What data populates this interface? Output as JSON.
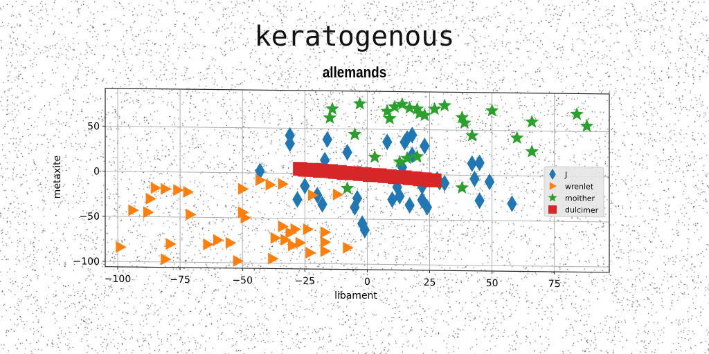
{
  "suptitle": "keratogenous",
  "chart_data": {
    "type": "scatter",
    "title": "allemands",
    "xlabel": "libament",
    "ylabel": "metaxite",
    "xlim": [
      -105,
      97
    ],
    "ylim": [
      -106,
      92
    ],
    "xticks": [
      -100,
      -75,
      -50,
      -25,
      0,
      25,
      50,
      75
    ],
    "yticks": [
      -100,
      -50,
      0,
      50
    ],
    "grid": true,
    "legend_position": "center-right",
    "series": [
      {
        "name": "J",
        "marker": "diamond",
        "color": "#1f77b4",
        "points": [
          [
            -31,
            42
          ],
          [
            -31,
            33
          ],
          [
            -43,
            2
          ],
          [
            -25,
            -14
          ],
          [
            -28,
            -29
          ],
          [
            -17,
            15
          ],
          [
            -12,
            2
          ],
          [
            -16,
            38
          ],
          [
            -8,
            24
          ],
          [
            -20,
            -24
          ],
          [
            -18,
            -34
          ],
          [
            -4,
            -27
          ],
          [
            -5,
            -37
          ],
          [
            -2,
            -55
          ],
          [
            -1,
            -62
          ],
          [
            8,
            36
          ],
          [
            13,
            -24
          ],
          [
            12,
            -14
          ],
          [
            10,
            -28
          ],
          [
            17,
            -34
          ],
          [
            16,
            40
          ],
          [
            18,
            44
          ],
          [
            15,
            36
          ],
          [
            23,
            32
          ],
          [
            22,
            -13
          ],
          [
            24,
            -36
          ],
          [
            18,
            22
          ],
          [
            14,
            8
          ],
          [
            21,
            -6
          ],
          [
            28,
            -5
          ],
          [
            22,
            -28
          ],
          [
            29,
            -8
          ],
          [
            31,
            -9
          ],
          [
            42,
            13
          ],
          [
            45,
            14
          ],
          [
            43,
            -4
          ],
          [
            45,
            -28
          ],
          [
            49,
            -7
          ],
          [
            58,
            -31
          ]
        ]
      },
      {
        "name": "wrenlet",
        "marker": "triangle-right",
        "color": "#ff7f0e",
        "points": [
          [
            -99,
            -84
          ],
          [
            -94,
            -43
          ],
          [
            -87,
            -30
          ],
          [
            -88,
            -45
          ],
          [
            -85,
            -18
          ],
          [
            -81,
            -19
          ],
          [
            -76,
            -20
          ],
          [
            -72,
            -22
          ],
          [
            -71,
            -47
          ],
          [
            -79,
            -80
          ],
          [
            -81,
            -97
          ],
          [
            -64,
            -80
          ],
          [
            -60,
            -75
          ],
          [
            -55,
            -78
          ],
          [
            -52,
            -98
          ],
          [
            -50,
            -44
          ],
          [
            -49,
            -50
          ],
          [
            -50,
            -18
          ],
          [
            -43,
            -8
          ],
          [
            -39,
            -13
          ],
          [
            -34,
            -12
          ],
          [
            -37,
            -72
          ],
          [
            -38,
            -95
          ],
          [
            -34,
            -59
          ],
          [
            -33,
            -74
          ],
          [
            -31,
            -66
          ],
          [
            -29,
            -62
          ],
          [
            -30,
            -80
          ],
          [
            -27,
            -77
          ],
          [
            -24,
            -62
          ],
          [
            -23,
            -88
          ],
          [
            -17,
            -65
          ],
          [
            -17,
            -76
          ],
          [
            -17,
            -86
          ],
          [
            -22,
            -24
          ],
          [
            -12,
            -23
          ],
          [
            -8,
            -82
          ]
        ]
      },
      {
        "name": "moither",
        "marker": "star",
        "color": "#2ca02c",
        "points": [
          [
            -14,
            72
          ],
          [
            -15,
            62
          ],
          [
            -5,
            44
          ],
          [
            -3,
            78
          ],
          [
            3,
            19
          ],
          [
            8,
            70
          ],
          [
            9,
            62
          ],
          [
            11,
            75
          ],
          [
            14,
            78
          ],
          [
            17,
            74
          ],
          [
            20,
            73
          ],
          [
            21,
            68
          ],
          [
            23,
            66
          ],
          [
            27,
            73
          ],
          [
            31,
            77
          ],
          [
            16,
            18
          ],
          [
            13,
            14
          ],
          [
            20,
            20
          ],
          [
            38,
            64
          ],
          [
            39,
            58
          ],
          [
            42,
            44
          ],
          [
            50,
            72
          ],
          [
            60,
            42
          ],
          [
            66,
            60
          ],
          [
            66,
            27
          ],
          [
            84,
            69
          ],
          [
            88,
            56
          ],
          [
            38,
            -14
          ],
          [
            -8,
            -16
          ]
        ]
      },
      {
        "name": "dulcimer",
        "marker": "square",
        "color": "#d62728",
        "points": [
          [
            -27,
            5
          ],
          [
            -25,
            4
          ],
          [
            -23,
            4
          ],
          [
            -21,
            4
          ],
          [
            -19,
            3
          ],
          [
            -17,
            3
          ],
          [
            -15,
            3
          ],
          [
            -13,
            2
          ],
          [
            -11,
            2
          ],
          [
            -9,
            1
          ],
          [
            -7,
            1
          ],
          [
            -5,
            1
          ],
          [
            -3,
            0
          ],
          [
            -1,
            0
          ],
          [
            1,
            -1
          ],
          [
            3,
            -1
          ],
          [
            5,
            -1
          ],
          [
            7,
            -2
          ],
          [
            9,
            -2
          ],
          [
            11,
            -3
          ],
          [
            13,
            -3
          ],
          [
            15,
            -3
          ],
          [
            17,
            -4
          ],
          [
            19,
            -4
          ],
          [
            21,
            -5
          ],
          [
            23,
            -5
          ],
          [
            25,
            -6
          ],
          [
            27,
            -6
          ]
        ]
      }
    ]
  }
}
